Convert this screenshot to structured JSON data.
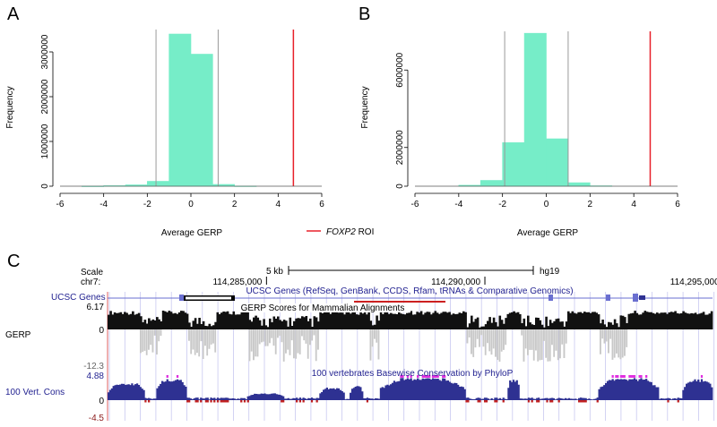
{
  "colors": {
    "hist_fill": "#76edc8",
    "roi_line": "#e8202a",
    "grey_line": "#9a9a9a",
    "navy": "#2e3192",
    "blue_label": "#1f1f8f",
    "red_track": "#8b1a1a",
    "gene_blue": "#6a6fd0",
    "magenta": "#e030e0",
    "browser_grid": "#c8c8f0"
  },
  "legend": {
    "italic": "FOXP2",
    "rest": " ROI"
  },
  "chart_data": [
    {
      "panel": "A",
      "type": "bar",
      "title": "",
      "xlabel": "Average GERP",
      "ylabel": "Frequency",
      "xlim": [
        -6,
        6
      ],
      "ylim": [
        0,
        3500000
      ],
      "xticks": [
        "-6",
        "-4",
        "-2",
        "0",
        "2",
        "4",
        "6"
      ],
      "yticks": [
        "0",
        "1000000",
        "2000000",
        "3000000"
      ],
      "bins": [
        {
          "x0": -5,
          "x1": -4,
          "value": 2000
        },
        {
          "x0": -4,
          "x1": -3,
          "value": 12000
        },
        {
          "x0": -3,
          "x1": -2,
          "value": 30000
        },
        {
          "x0": -2,
          "x1": -1,
          "value": 110000
        },
        {
          "x0": -1,
          "x1": 0,
          "value": 3400000
        },
        {
          "x0": 0,
          "x1": 1,
          "value": 2950000
        },
        {
          "x0": 1,
          "x1": 2,
          "value": 40000
        },
        {
          "x0": 2,
          "x1": 3,
          "value": 4000
        }
      ],
      "vlines_grey": [
        -1.6,
        1.25
      ],
      "vline_roi": 4.7
    },
    {
      "panel": "B",
      "type": "bar",
      "title": "",
      "xlabel": "Average GERP",
      "ylabel": "Frequency",
      "xlim": [
        -6,
        6
      ],
      "ylim": [
        0,
        8000000
      ],
      "xticks": [
        "-6",
        "-4",
        "-2",
        "0",
        "2",
        "4",
        "6"
      ],
      "yticks": [
        "0",
        "2000000",
        "6000000"
      ],
      "bins": [
        {
          "x0": -4,
          "x1": -3,
          "value": 50000
        },
        {
          "x0": -3,
          "x1": -2,
          "value": 300000
        },
        {
          "x0": -2,
          "x1": -1,
          "value": 2250000
        },
        {
          "x0": -1,
          "x1": 0,
          "value": 7900000
        },
        {
          "x0": 0,
          "x1": 1,
          "value": 2450000
        },
        {
          "x0": 1,
          "x1": 2,
          "value": 180000
        },
        {
          "x0": 2,
          "x1": 3,
          "value": 20000
        }
      ],
      "vlines_grey": [
        -1.9,
        1.0
      ],
      "vline_roi": 4.75
    }
  ],
  "browser": {
    "scale_label": "Scale",
    "scale_bar": "5 kb",
    "assembly": "hg19",
    "chrom": "chr7:",
    "positions": [
      {
        "label": "114,285,000",
        "frac": 0.122
      },
      {
        "label": "114,290,000",
        "frac": 0.483
      },
      {
        "label": "114,295,000",
        "frac": 0.878
      }
    ],
    "genes_label": "UCSC Genes",
    "genes_title": "UCSC Genes (RefSeq, GenBank, CCDS, Rfam, tRNAs & Comparative Genomics)",
    "gerp_label": "GERP",
    "gerp_title": "GERP Scores for Mammalian Alignments",
    "gerp_max": "6.17",
    "gerp_zero": "0",
    "gerp_min": "-12.3",
    "cons_label": "100 Vert. Cons",
    "cons_title": "100 vertebrates Basewise Conservation by PhyloP",
    "cons_max": "4.88",
    "cons_zero": "0",
    "cons_min": "-4.5",
    "blocks": [
      [
        0.0,
        0.05
      ],
      [
        0.09,
        0.13
      ],
      [
        0.18,
        0.23
      ],
      [
        0.35,
        0.43
      ],
      [
        0.45,
        0.59
      ],
      [
        0.66,
        0.68
      ],
      [
        0.76,
        0.81
      ],
      [
        0.86,
        1.0
      ]
    ],
    "cons_hi": [
      [
        0.0,
        0.06,
        0.7
      ],
      [
        0.08,
        0.13,
        0.88
      ],
      [
        0.23,
        0.29,
        0.28
      ],
      [
        0.35,
        0.39,
        0.52
      ],
      [
        0.4,
        0.42,
        0.6
      ],
      [
        0.45,
        0.59,
        0.92
      ],
      [
        0.66,
        0.68,
        0.85
      ],
      [
        0.81,
        0.91,
        0.92
      ],
      [
        0.95,
        1.0,
        0.88
      ]
    ]
  }
}
